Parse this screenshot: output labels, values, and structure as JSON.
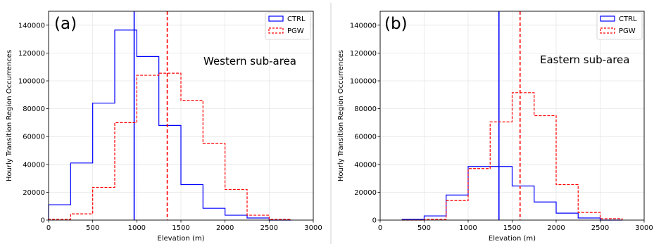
{
  "chart_data": [
    {
      "type": "histogram",
      "panel_label": "(a)",
      "annotation": "Western sub-area",
      "xlabel": "Elevation (m)",
      "ylabel": "Hourly Transition Region Occurrences",
      "xlim": [
        0,
        3000
      ],
      "ylim": [
        0,
        150000
      ],
      "xticks": [
        0,
        500,
        1000,
        1500,
        2000,
        2500,
        3000
      ],
      "yticks": [
        0,
        20000,
        40000,
        60000,
        80000,
        100000,
        120000,
        140000
      ],
      "grid": true,
      "legend_position": "upper right",
      "bin_edges": [
        0,
        250,
        500,
        750,
        1000,
        1250,
        1500,
        1750,
        2000,
        2250,
        2500,
        2750
      ],
      "series": [
        {
          "name": "CTRL",
          "color": "#0000ff",
          "linestyle": "solid",
          "values": [
            11000,
            41000,
            84000,
            136500,
            117500,
            68000,
            25500,
            8500,
            3500,
            1500,
            0
          ],
          "mean_line": 970
        },
        {
          "name": "PGW",
          "color": "#ff0000",
          "linestyle": "dashed",
          "values": [
            500,
            4500,
            23500,
            70000,
            104000,
            105500,
            86000,
            55000,
            22000,
            3500,
            500
          ],
          "mean_line": 1345
        }
      ]
    },
    {
      "type": "histogram",
      "panel_label": "(b)",
      "annotation": "Eastern sub-area",
      "xlabel": "Elevation (m)",
      "ylabel": "Hourly Transition Region Occurrences",
      "xlim": [
        0,
        3000
      ],
      "ylim": [
        0,
        150000
      ],
      "xticks": [
        0,
        500,
        1000,
        1500,
        2000,
        2500,
        3000
      ],
      "yticks": [
        0,
        20000,
        40000,
        60000,
        80000,
        100000,
        120000,
        140000
      ],
      "grid": true,
      "legend_position": "upper right",
      "bin_edges": [
        250,
        500,
        750,
        1000,
        1250,
        1500,
        1750,
        2000,
        2250,
        2500,
        2750
      ],
      "series": [
        {
          "name": "CTRL",
          "color": "#0000ff",
          "linestyle": "solid",
          "values": [
            500,
            3000,
            18000,
            38500,
            38500,
            24500,
            13000,
            5000,
            1500,
            0
          ],
          "mean_line": 1350
        },
        {
          "name": "PGW",
          "color": "#ff0000",
          "linestyle": "dashed",
          "values": [
            0,
            500,
            14000,
            37000,
            70500,
            91500,
            75000,
            25500,
            5500,
            1000
          ],
          "mean_line": 1590
        }
      ]
    }
  ]
}
